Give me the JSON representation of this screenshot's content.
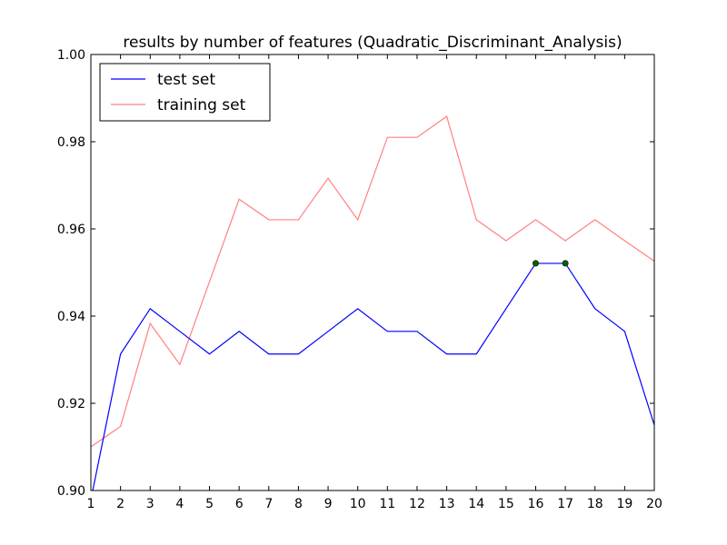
{
  "chart_data": {
    "type": "line",
    "title": "results by number of features (Quadratic_Discriminant_Analysis)",
    "xlabel": "",
    "ylabel": "",
    "xlim": [
      1,
      20
    ],
    "ylim": [
      0.9,
      1.0
    ],
    "x_ticks": [
      1,
      2,
      3,
      4,
      5,
      6,
      7,
      8,
      9,
      10,
      11,
      12,
      13,
      14,
      15,
      16,
      17,
      18,
      19,
      20
    ],
    "y_ticks": [
      0.9,
      0.92,
      0.94,
      0.96,
      0.98,
      1.0
    ],
    "y_tick_labels": [
      "0.90",
      "0.92",
      "0.94",
      "0.96",
      "0.98",
      "1.00"
    ],
    "grid": false,
    "legend_position": "top-left",
    "x": [
      1,
      2,
      3,
      4,
      5,
      6,
      7,
      8,
      9,
      10,
      11,
      12,
      13,
      14,
      15,
      16,
      17,
      18,
      19,
      20
    ],
    "series": [
      {
        "name": "test set",
        "color": "#0000ff",
        "values": [
          0.8979,
          0.9313,
          0.9417,
          0.9365,
          0.9313,
          0.9365,
          0.9313,
          0.9313,
          0.9365,
          0.9417,
          0.9365,
          0.9365,
          0.9313,
          0.9313,
          0.9417,
          0.9521,
          0.9521,
          0.9417,
          0.9365,
          0.915
        ]
      },
      {
        "name": "training set",
        "color": "#ff8080",
        "values": [
          0.91,
          0.9147,
          0.9383,
          0.9289,
          0.9479,
          0.9668,
          0.9621,
          0.9621,
          0.9716,
          0.9621,
          0.981,
          0.981,
          0.9858,
          0.9621,
          0.9573,
          0.9621,
          0.9573,
          0.9621,
          0.9573,
          0.9526
        ]
      }
    ],
    "markers": [
      {
        "x": 16,
        "y": 0.9521,
        "color": "#006400"
      },
      {
        "x": 17,
        "y": 0.9521,
        "color": "#006400"
      }
    ]
  }
}
